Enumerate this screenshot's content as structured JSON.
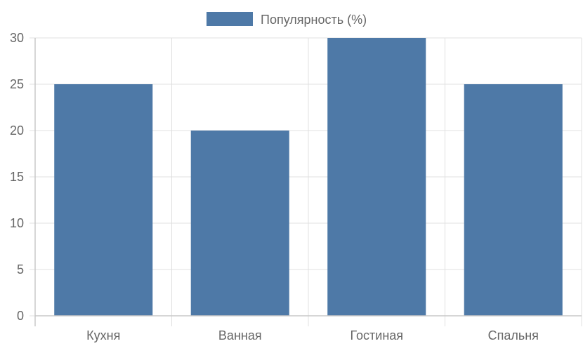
{
  "chart_data": {
    "type": "bar",
    "categories": [
      "Кухня",
      "Ванная",
      "Гостиная",
      "Спальня"
    ],
    "series": [
      {
        "name": "Популярность (%)",
        "values": [
          25,
          20,
          30,
          25
        ],
        "color": "#4e79a7"
      }
    ],
    "ylim": [
      0,
      30
    ],
    "yticks": [
      0,
      5,
      10,
      15,
      20,
      25,
      30
    ],
    "xlabel": "",
    "ylabel": "",
    "grid": true,
    "legend": "top-center"
  },
  "colors": {
    "bar": "#4e79a7",
    "grid": "#e0e0e0",
    "axis": "#c8c8c8",
    "text": "#666666"
  }
}
